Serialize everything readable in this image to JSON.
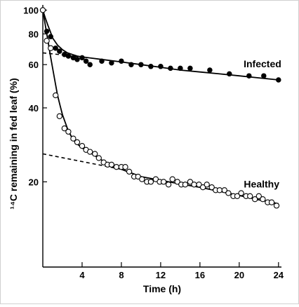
{
  "chart_data": {
    "type": "scatter",
    "xlabel": "Time (h)",
    "ylabel": "¹⁴C remaining in fed leaf (%)",
    "x_ticks": [
      4,
      8,
      12,
      16,
      20,
      24
    ],
    "x_tick_labels": [
      "4",
      "8",
      "12",
      "16",
      "20",
      "24"
    ],
    "xlim": [
      0,
      24.3
    ],
    "y_scale": "log",
    "y_ticks": [
      20,
      40,
      60,
      80,
      100
    ],
    "y_tick_labels": [
      "20",
      "40",
      "60",
      "80",
      "100"
    ],
    "ylim": [
      9,
      105
    ],
    "grid": false,
    "legend": "none",
    "series": [
      {
        "name": "Infected",
        "marker": "filled-circle",
        "points": [
          [
            0,
            100
          ],
          [
            0.4,
            82
          ],
          [
            0.8,
            78
          ],
          [
            1.3,
            70
          ],
          [
            1.7,
            68
          ],
          [
            2.2,
            66
          ],
          [
            2.6,
            65
          ],
          [
            3.1,
            64
          ],
          [
            3.5,
            63
          ],
          [
            4.0,
            64
          ],
          [
            4.4,
            62
          ],
          [
            4.8,
            60
          ],
          [
            6.0,
            62
          ],
          [
            7.0,
            61
          ],
          [
            8.0,
            62
          ],
          [
            9.0,
            60
          ],
          [
            10.0,
            60
          ],
          [
            11.0,
            59
          ],
          [
            12.0,
            59
          ],
          [
            13.0,
            58
          ],
          [
            14.0,
            58
          ],
          [
            15.0,
            58
          ],
          [
            17.0,
            57
          ],
          [
            19.0,
            55
          ],
          [
            21.0,
            54
          ],
          [
            22.5,
            54
          ],
          [
            24.0,
            52
          ]
        ],
        "fit_curve": [
          [
            0,
            100
          ],
          [
            0.25,
            93
          ],
          [
            0.5,
            87
          ],
          [
            0.75,
            82
          ],
          [
            1,
            77
          ],
          [
            1.5,
            72
          ],
          [
            2,
            69
          ],
          [
            2.5,
            67
          ],
          [
            3,
            66
          ],
          [
            3.5,
            65
          ],
          [
            4,
            64.5
          ],
          [
            6,
            63
          ],
          [
            8,
            61.5
          ],
          [
            10,
            60
          ],
          [
            12,
            58.5
          ],
          [
            14,
            57
          ],
          [
            16,
            56
          ],
          [
            18,
            55
          ],
          [
            20,
            54
          ],
          [
            22,
            53
          ],
          [
            24,
            52
          ]
        ],
        "extrapolation": [
          [
            0,
            67
          ],
          [
            4,
            64.5
          ]
        ],
        "label": "Infected"
      },
      {
        "name": "Healthy",
        "marker": "open-circle",
        "points": [
          [
            0,
            100
          ],
          [
            0.4,
            75
          ],
          [
            0.8,
            70
          ],
          [
            1.3,
            45
          ],
          [
            1.7,
            37
          ],
          [
            2.2,
            33
          ],
          [
            2.6,
            32
          ],
          [
            3.1,
            30
          ],
          [
            3.5,
            29
          ],
          [
            4.0,
            28
          ],
          [
            4.4,
            27
          ],
          [
            4.8,
            26.5
          ],
          [
            5.3,
            26
          ],
          [
            5.7,
            25
          ],
          [
            6.2,
            24
          ],
          [
            6.6,
            23.5
          ],
          [
            7.0,
            23.5
          ],
          [
            7.5,
            23
          ],
          [
            8.0,
            23
          ],
          [
            8.4,
            23
          ],
          [
            8.8,
            22
          ],
          [
            9.3,
            21
          ],
          [
            9.7,
            21
          ],
          [
            10.1,
            20.5
          ],
          [
            10.6,
            20
          ],
          [
            11.0,
            20
          ],
          [
            11.5,
            20.5
          ],
          [
            11.9,
            20
          ],
          [
            12.3,
            20
          ],
          [
            12.8,
            19.5
          ],
          [
            13.2,
            20.5
          ],
          [
            13.7,
            20
          ],
          [
            14.1,
            19.5
          ],
          [
            14.5,
            19.5
          ],
          [
            15.0,
            20
          ],
          [
            15.4,
            19.5
          ],
          [
            15.9,
            19.5
          ],
          [
            16.3,
            19
          ],
          [
            16.7,
            19.5
          ],
          [
            17.2,
            19
          ],
          [
            17.6,
            18.5
          ],
          [
            18.0,
            18.5
          ],
          [
            18.5,
            18.5
          ],
          [
            18.9,
            18
          ],
          [
            19.4,
            17.5
          ],
          [
            19.8,
            17.5
          ],
          [
            20.2,
            18
          ],
          [
            20.7,
            17.5
          ],
          [
            21.1,
            17.5
          ],
          [
            21.6,
            17
          ],
          [
            22.0,
            17.5
          ],
          [
            22.4,
            17
          ],
          [
            22.9,
            16.5
          ],
          [
            23.3,
            16.5
          ],
          [
            23.8,
            16
          ]
        ],
        "fit_curve": [
          [
            0,
            100
          ],
          [
            0.25,
            87
          ],
          [
            0.5,
            76
          ],
          [
            0.75,
            66
          ],
          [
            1,
            58
          ],
          [
            1.25,
            51
          ],
          [
            1.5,
            45
          ],
          [
            1.75,
            41
          ],
          [
            2,
            37.5
          ],
          [
            2.5,
            33
          ],
          [
            3,
            30
          ],
          [
            3.5,
            28.5
          ],
          [
            4,
            27.5
          ],
          [
            5,
            26
          ],
          [
            6,
            24.5
          ],
          [
            7,
            23.5
          ],
          [
            8,
            22.5
          ],
          [
            10,
            21
          ],
          [
            12,
            20.3
          ],
          [
            14,
            19.6
          ],
          [
            16,
            19
          ],
          [
            18,
            18.3
          ],
          [
            20,
            17.6
          ],
          [
            22,
            16.9
          ],
          [
            24,
            16.3
          ]
        ],
        "extrapolation": [
          [
            0,
            26
          ],
          [
            8,
            22.5
          ]
        ],
        "label": "Healthy"
      }
    ],
    "colors": {
      "ink": "#000000",
      "open_marker_fill": "#ffffff"
    }
  }
}
